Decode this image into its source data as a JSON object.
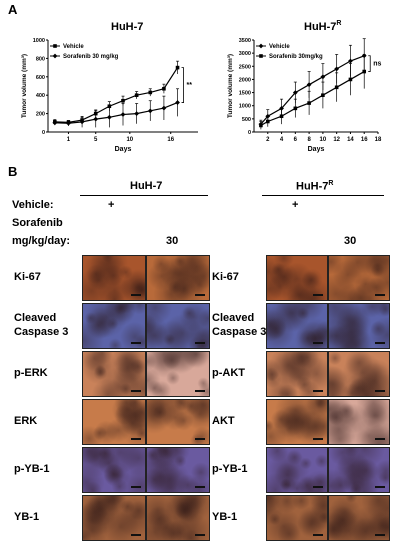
{
  "panel_a": {
    "letter": "A"
  },
  "panel_b": {
    "letter": "B",
    "left_title": "HuH-7",
    "right_title": "HuH-7",
    "right_title_sup": "R",
    "vehicle_label": "Vehicle:",
    "vehicle_mark_left": "+",
    "vehicle_mark_right": "+",
    "sorafenib_label": "Sorafenib",
    "dose_label": "mg/kg/day:",
    "dose_left": "30",
    "dose_right": "30",
    "left_rows": [
      "Ki-67",
      "Cleaved\nCaspase 3",
      "p-ERK",
      "ERK",
      "p-YB-1",
      "YB-1"
    ],
    "right_rows": [
      "Ki-67",
      "Cleaved\nCaspase 3",
      "p-AKT",
      "AKT",
      "p-YB-1",
      "YB-1"
    ]
  },
  "stain_colors": {
    "ki67_vehicle": "#a8552c",
    "ki67_sorafenib": "#b86a3a",
    "caspase": "#5b63a8",
    "perk": "#c9825a",
    "erk": "#c77b4a",
    "pyb1": "#6a5aa0",
    "yb1": "#a0623d",
    "pink": "#d8a89a"
  },
  "chart_data": [
    {
      "type": "line",
      "title": "HuH-7",
      "title_sup": "",
      "xlabel": "Days",
      "ylabel": "Tumor volume (mm³)",
      "xticks": [
        1,
        5,
        10,
        16
      ],
      "yticks": [
        0,
        200,
        400,
        600,
        800,
        1000
      ],
      "xlim": [
        -2,
        20
      ],
      "ylim": [
        0,
        1000
      ],
      "significance": "**",
      "series": [
        {
          "name": "Vehicle",
          "marker": "square",
          "x": [
            -1,
            1,
            3,
            5,
            7,
            9,
            11,
            13,
            15,
            17
          ],
          "y": [
            110,
            105,
            130,
            200,
            280,
            340,
            400,
            430,
            470,
            700
          ],
          "err": [
            25,
            20,
            30,
            40,
            50,
            50,
            40,
            40,
            50,
            70
          ]
        },
        {
          "name": "Sorafenib 30 mg/kg",
          "marker": "diamond",
          "x": [
            -1,
            1,
            3,
            5,
            7,
            9,
            11,
            13,
            15,
            17
          ],
          "y": [
            100,
            95,
            110,
            140,
            160,
            190,
            200,
            230,
            260,
            320
          ],
          "err": [
            25,
            30,
            60,
            90,
            110,
            120,
            110,
            110,
            130,
            150
          ]
        }
      ]
    },
    {
      "type": "line",
      "title": "HuH-7",
      "title_sup": "R",
      "xlabel": "Days",
      "ylabel": "Tumor volume (mm³)",
      "xticks": [
        2,
        4,
        6,
        8,
        10,
        12,
        14,
        16,
        18
      ],
      "yticks": [
        0,
        500,
        1000,
        1500,
        2000,
        2500,
        3000,
        3500
      ],
      "xlim": [
        0,
        18
      ],
      "ylim": [
        0,
        3500
      ],
      "significance": "ns",
      "series": [
        {
          "name": "Vehicle",
          "marker": "diamond",
          "x": [
            1,
            2,
            4,
            6,
            8,
            10,
            12,
            14,
            16
          ],
          "y": [
            300,
            600,
            900,
            1500,
            1800,
            2100,
            2400,
            2700,
            2900
          ],
          "err": [
            150,
            250,
            350,
            400,
            500,
            500,
            550,
            600,
            650
          ]
        },
        {
          "name": "Sorafenib 30mg/kg",
          "marker": "square",
          "x": [
            1,
            2,
            4,
            6,
            8,
            10,
            12,
            14,
            16
          ],
          "y": [
            250,
            400,
            600,
            900,
            1100,
            1400,
            1700,
            2000,
            2300
          ],
          "err": [
            150,
            200,
            300,
            350,
            450,
            500,
            550,
            600,
            650
          ]
        }
      ]
    }
  ]
}
